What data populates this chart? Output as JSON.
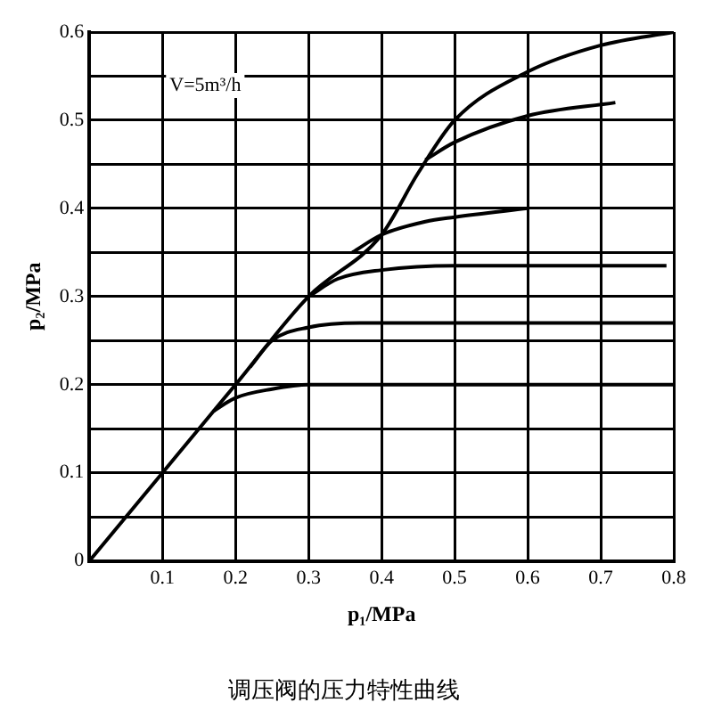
{
  "chart_data": {
    "type": "line",
    "title": "调压阀的压力特性曲线",
    "xlabel": "p₁/MPa",
    "ylabel": "p₂/MPa",
    "annotations": [
      "V=5m³/h"
    ],
    "xlim": [
      0,
      0.8
    ],
    "ylim": [
      0,
      0.6
    ],
    "xticks": [
      {
        "value": 0,
        "label": null
      },
      0.1,
      0.2,
      0.3,
      0.4,
      0.5,
      0.6,
      0.7,
      0.8
    ],
    "yticks": [
      0,
      {
        "value": 0.05,
        "label": null
      },
      0.1,
      {
        "value": 0.15,
        "label": null
      },
      0.2,
      {
        "value": 0.25,
        "label": null
      },
      0.3,
      {
        "value": 0.35,
        "label": null
      },
      0.4,
      {
        "value": 0.45,
        "label": null
      },
      0.5,
      {
        "value": 0.55,
        "label": null
      },
      0.6
    ],
    "grid": true,
    "legend": false,
    "marker": "none",
    "line_style": "solid",
    "series": [
      {
        "color": "#000000",
        "x": [
          0,
          0.1,
          0.2,
          0.3,
          0.4,
          0.45,
          0.5,
          0.6,
          0.7,
          0.8
        ],
        "values": [
          0,
          0.1,
          0.2,
          0.3,
          0.37,
          0.44,
          0.5,
          0.555,
          0.585,
          0.6
        ]
      },
      {
        "color": "#000000",
        "x": [
          0.46,
          0.5,
          0.6,
          0.72
        ],
        "values": [
          0.455,
          0.475,
          0.505,
          0.52
        ]
      },
      {
        "color": "#000000",
        "x": [
          0.36,
          0.4,
          0.46,
          0.5,
          0.6
        ],
        "values": [
          0.35,
          0.37,
          0.385,
          0.39,
          0.4
        ]
      },
      {
        "color": "#000000",
        "x": [
          0.3,
          0.34,
          0.4,
          0.5,
          0.79
        ],
        "values": [
          0.3,
          0.32,
          0.33,
          0.335,
          0.335
        ]
      },
      {
        "color": "#000000",
        "x": [
          0.22,
          0.25,
          0.3,
          0.37,
          0.8
        ],
        "values": [
          0.22,
          0.25,
          0.265,
          0.27,
          0.27
        ]
      },
      {
        "color": "#000000",
        "x": [
          0.17,
          0.2,
          0.25,
          0.3,
          0.8
        ],
        "values": [
          0.17,
          0.185,
          0.195,
          0.2,
          0.2
        ]
      }
    ]
  }
}
